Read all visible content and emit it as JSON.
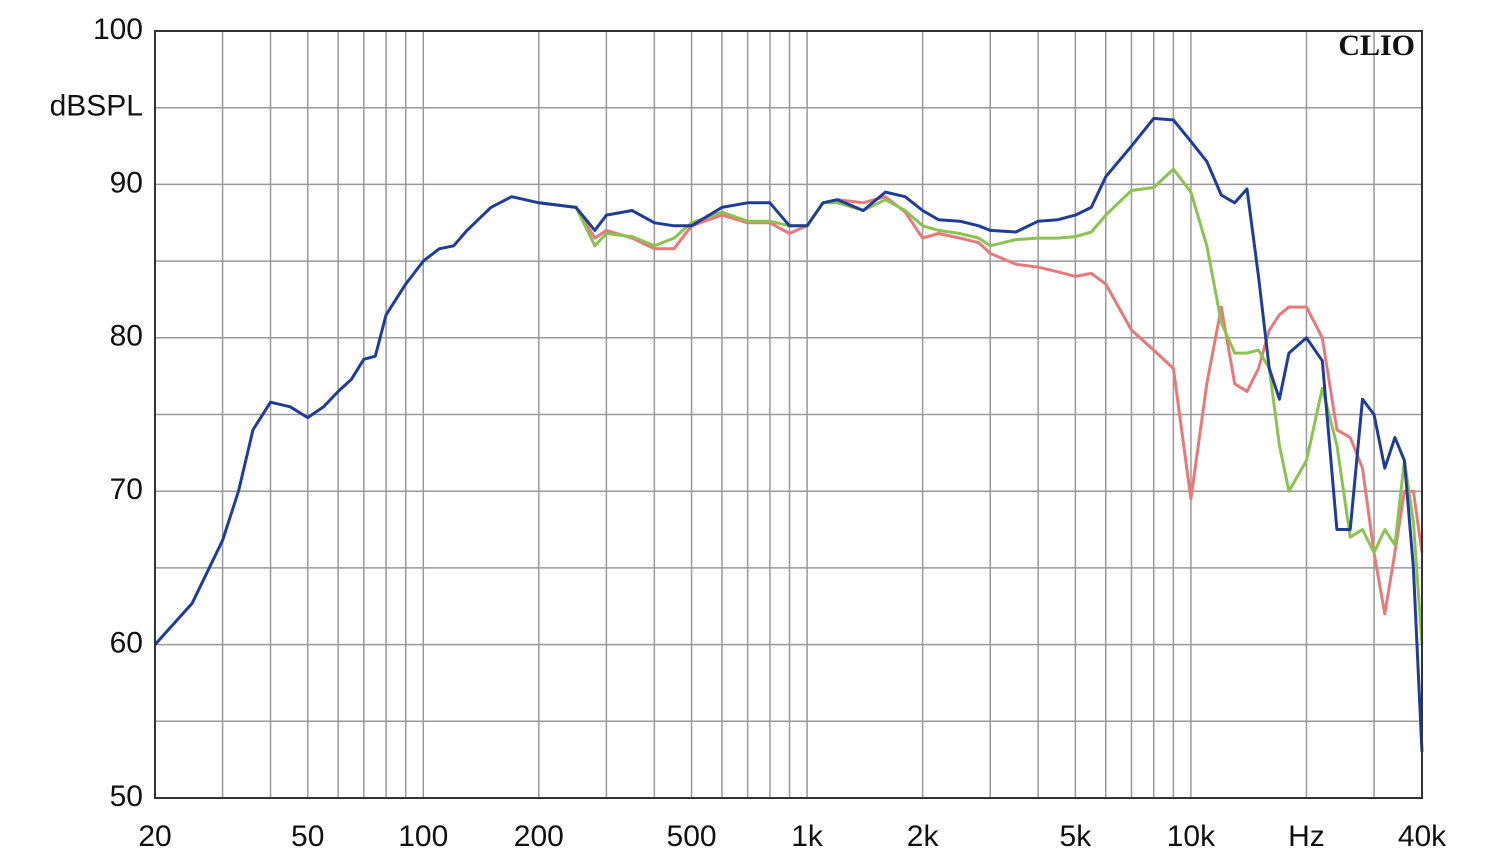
{
  "chart_data": {
    "type": "line",
    "annotation": "CLIO",
    "y_label": "dBSPL",
    "x_scale": "log",
    "grid": true,
    "xlim": [
      20,
      40000
    ],
    "ylim": [
      50,
      100
    ],
    "xticks": [
      20,
      50,
      100,
      200,
      500,
      {
        "value": 1000,
        "label": "1k"
      },
      {
        "value": 2000,
        "label": "2k"
      },
      {
        "value": 5000,
        "label": "5k"
      },
      {
        "value": 10000,
        "label": "10k"
      },
      {
        "value": 20000,
        "label": "Hz"
      },
      {
        "value": 40000,
        "label": "40k"
      }
    ],
    "x_minor_ticks": [
      30,
      40,
      60,
      70,
      80,
      90,
      300,
      400,
      600,
      700,
      800,
      900,
      3000,
      4000,
      6000,
      7000,
      8000,
      9000,
      30000
    ],
    "yticks": [
      50,
      60,
      70,
      80,
      90,
      100
    ],
    "y_minor_ticks": [
      55,
      65,
      75,
      85,
      95
    ],
    "x": [
      20,
      25,
      30,
      33,
      36,
      40,
      45,
      50,
      55,
      60,
      65,
      70,
      75,
      80,
      90,
      100,
      110,
      120,
      130,
      150,
      170,
      200,
      250,
      280,
      300,
      350,
      400,
      450,
      500,
      600,
      700,
      800,
      900,
      1000,
      1100,
      1200,
      1400,
      1600,
      1800,
      2000,
      2200,
      2500,
      2800,
      3000,
      3500,
      4000,
      4500,
      5000,
      5500,
      6000,
      7000,
      8000,
      9000,
      10000,
      11000,
      12000,
      13000,
      14000,
      15000,
      16000,
      17000,
      18000,
      20000,
      22000,
      24000,
      26000,
      28000,
      30000,
      32000,
      34000,
      36000,
      38000,
      40000
    ],
    "series": [
      {
        "name": "red",
        "color": "#e8797a",
        "values": [
          null,
          null,
          null,
          null,
          null,
          null,
          null,
          null,
          null,
          null,
          null,
          null,
          null,
          null,
          null,
          null,
          null,
          null,
          null,
          null,
          null,
          88.8,
          88.5,
          86.5,
          87,
          86.5,
          85.8,
          85.8,
          87.3,
          88,
          87.5,
          87.5,
          86.8,
          87.3,
          88.8,
          89,
          88.8,
          89.2,
          88.2,
          86.5,
          86.8,
          86.5,
          86.2,
          85.5,
          84.8,
          84.6,
          84.3,
          84,
          84.2,
          83.5,
          80.5,
          79.2,
          78,
          69.5,
          77,
          82,
          77,
          76.5,
          78,
          80.5,
          81.5,
          82,
          82,
          80,
          74,
          73.5,
          71.5,
          66,
          62,
          66,
          70,
          70,
          66
        ]
      },
      {
        "name": "green",
        "color": "#8cc350",
        "values": [
          null,
          null,
          null,
          null,
          null,
          null,
          null,
          null,
          null,
          null,
          null,
          null,
          null,
          null,
          null,
          null,
          null,
          null,
          null,
          null,
          null,
          88.8,
          88.5,
          86,
          86.8,
          86.6,
          86,
          86.5,
          87.5,
          88.2,
          87.6,
          87.6,
          87.3,
          87.3,
          88.8,
          88.8,
          88.3,
          89,
          88.3,
          87.3,
          87,
          86.8,
          86.5,
          86,
          86.4,
          86.5,
          86.5,
          86.6,
          86.9,
          88,
          89.6,
          89.8,
          91,
          89.5,
          86,
          81,
          79,
          79,
          79.2,
          78,
          73,
          70,
          72,
          76.7,
          73,
          67,
          67.5,
          66,
          67.5,
          66.5,
          72,
          68,
          60
        ]
      },
      {
        "name": "blue",
        "color": "#1f3d96",
        "values": [
          60,
          62.7,
          66.8,
          70,
          74,
          75.8,
          75.5,
          74.8,
          75.5,
          76.5,
          77.3,
          78.6,
          78.8,
          81.5,
          83.5,
          85,
          85.8,
          86,
          87,
          88.5,
          89.2,
          88.8,
          88.5,
          87,
          88,
          88.3,
          87.5,
          87.3,
          87.3,
          88.5,
          88.8,
          88.8,
          87.3,
          87.3,
          88.8,
          89,
          88.3,
          89.5,
          89.2,
          88.3,
          87.7,
          87.6,
          87.3,
          87,
          86.9,
          87.6,
          87.7,
          88,
          88.5,
          90.5,
          92.5,
          94.3,
          94.2,
          92.8,
          91.5,
          89.3,
          88.8,
          89.7,
          84,
          78,
          76,
          79,
          80,
          78.5,
          67.5,
          67.5,
          76,
          75,
          71.5,
          73.5,
          72,
          65,
          53
        ]
      }
    ]
  }
}
